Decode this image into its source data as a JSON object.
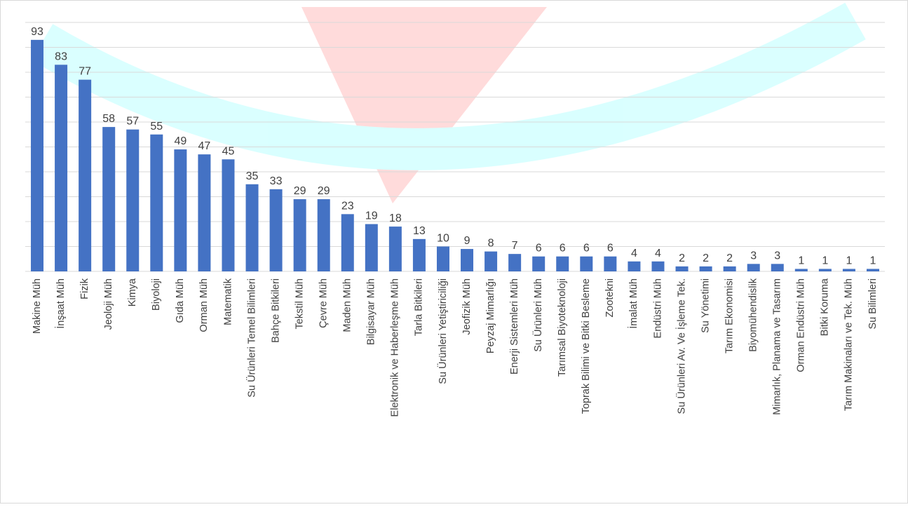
{
  "chart_data": {
    "type": "bar",
    "categories": [
      "Makine Müh",
      "İnşaat Müh",
      "Fizik",
      "Jeoloji Müh",
      "Kimya",
      "Biyoloji",
      "Gıda Müh",
      "Orman Müh",
      "Matematik",
      "Su Ürünleri Temel Bilimleri",
      "Bahçe Bitkileri",
      "Tekstil Müh",
      "Çevre Müh",
      "Maden Müh",
      "Bilgisayar Müh",
      "Elektronik ve Haberleşme Müh",
      "Tarla Bitkileri",
      "Su Ürünleri Yetiştiriciliği",
      "Jeofizik Müh",
      "Peyzaj Mimarlığı",
      "Enerji Sistemleri Müh",
      "Su Ürünleri Müh",
      "Tarımsal Biyoteknoloji",
      "Toprak Bilimi ve Bitki Besleme",
      "Zootekni",
      "İmalat Müh",
      "Endüstri Müh",
      "Su Ürünleri Av. Ve İşleme Tek.",
      "Su Yönetimi",
      "Tarım Ekonomisi",
      "Biyomühendislik",
      "Mimarlık, Planama ve Tasarım",
      "Orman Endüstri Müh",
      "Bitki Koruma",
      "Tarım Makinaları ve Tek. Müh",
      "Su Bilimleri"
    ],
    "values": [
      93,
      83,
      77,
      58,
      57,
      55,
      49,
      47,
      45,
      35,
      33,
      29,
      29,
      23,
      19,
      18,
      13,
      10,
      9,
      8,
      7,
      6,
      6,
      6,
      6,
      4,
      4,
      2,
      2,
      2,
      3,
      3,
      1,
      1,
      1,
      1
    ],
    "color": "#4472c4",
    "ylim": [
      0,
      100
    ],
    "yticks": [
      0,
      10,
      20,
      30,
      40,
      50,
      60,
      70,
      80,
      90,
      100
    ],
    "grid": true
  }
}
